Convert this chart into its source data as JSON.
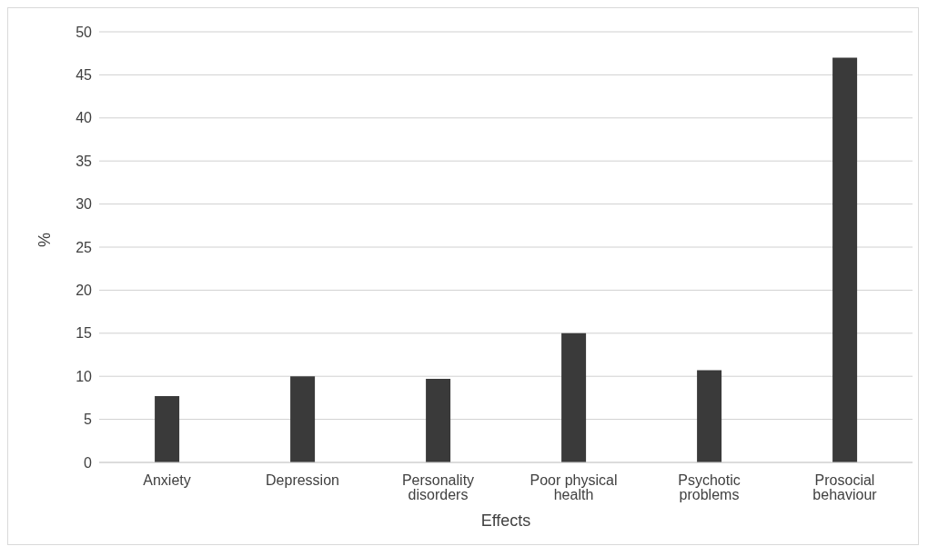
{
  "chart_data": {
    "type": "bar",
    "xlabel": "Effects",
    "ylabel": "%",
    "categories": [
      "Anxiety",
      "Depression",
      "Personality disorders",
      "Poor physical health",
      "Psychotic problems",
      "Prosocial behaviour"
    ],
    "values": [
      7.7,
      10,
      9.7,
      15,
      10.7,
      47
    ],
    "color": "#3a3a3a",
    "ylim": [
      0,
      50
    ],
    "yticks": [
      0,
      5,
      10,
      15,
      20,
      25,
      30,
      35,
      40,
      45,
      50
    ],
    "grid": "y"
  }
}
